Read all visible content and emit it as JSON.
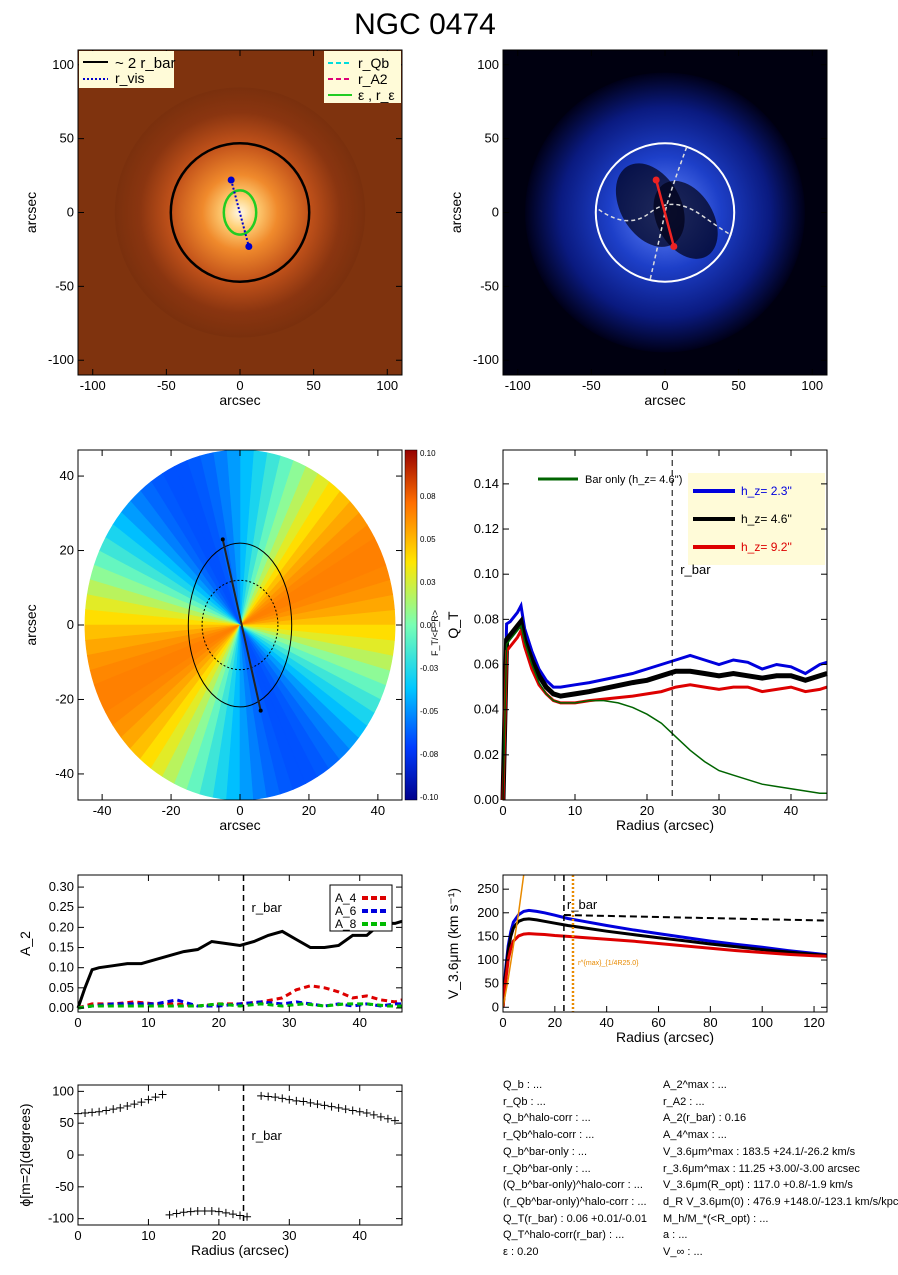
{
  "title": "NGC 0474",
  "chart_data": [
    {
      "type": "image",
      "panel": "top-left",
      "description_shown": "galaxy image with overlays",
      "xlabel": "arcsec",
      "ylabel": "arcsec",
      "xlim": [
        -110,
        110
      ],
      "ylim": [
        -110,
        110
      ],
      "xticks": [
        -100,
        -50,
        0,
        50,
        100
      ],
      "yticks": [
        -100,
        -50,
        0,
        50,
        100
      ],
      "legend_left": [
        "~ 2 r_bar",
        "r_vis"
      ],
      "legend_right": [
        "r_Qb",
        "r_A2",
        "ε , r_ε"
      ],
      "circle_radius": 47,
      "ellipse": {
        "a": 15,
        "b": 11
      },
      "vis_line": [
        [
          -6,
          22
        ],
        [
          6,
          -23
        ]
      ]
    },
    {
      "type": "image",
      "panel": "top-right",
      "xlabel": "arcsec",
      "ylabel": "arcsec",
      "xlim": [
        -110,
        110
      ],
      "ylim": [
        -110,
        110
      ],
      "xticks": [
        -100,
        -50,
        0,
        50,
        100
      ],
      "yticks": [
        -100,
        -50,
        0,
        50,
        100
      ],
      "circle_radius": 47,
      "red_line": [
        [
          -6,
          22
        ],
        [
          6,
          -23
        ]
      ]
    },
    {
      "type": "heatmap",
      "panel": "middle-left",
      "xlabel": "arcsec",
      "ylabel": "arcsec",
      "xlim": [
        -47,
        47
      ],
      "ylim": [
        -47,
        47
      ],
      "xticks": [
        -40,
        -20,
        0,
        20,
        40
      ],
      "yticks": [
        -40,
        -20,
        0,
        20,
        40
      ],
      "colorbar_label": "F_T/<F_R>",
      "colorbar_ticks": [
        "0.10",
        "0.08",
        "0.05",
        "0.03",
        "0.00",
        "-0.03",
        "-0.05",
        "-0.08",
        "-0.10"
      ],
      "bar_line": [
        [
          -5,
          23
        ],
        [
          6,
          -23
        ]
      ],
      "ellipse": {
        "a": 22,
        "b": 15
      },
      "dotted_circle_radius": 8
    },
    {
      "type": "line",
      "panel": "middle-right",
      "xlabel": "Radius (arcsec)",
      "ylabel": "Q_T",
      "xlim": [
        0,
        45
      ],
      "ylim": [
        0,
        0.155
      ],
      "xticks": [
        0,
        10,
        20,
        30,
        40
      ],
      "yticks": [
        "0.00",
        "0.02",
        "0.04",
        "0.06",
        "0.08",
        "0.10",
        "0.12",
        "0.14"
      ],
      "rbar": 23.5,
      "rbar_label": "r_bar",
      "legend_bar": "Bar only (h_z=  4.6'')",
      "legend": [
        {
          "label": "h_z=  2.3''",
          "color": "#0000dd"
        },
        {
          "label": "h_z=  4.6''",
          "color": "#000000"
        },
        {
          "label": "h_z=  9.2''",
          "color": "#dd0000"
        }
      ],
      "series": [
        {
          "name": "h_z=  2.3''",
          "color": "#0000dd",
          "x": [
            0,
            0.5,
            1,
            2,
            2.5,
            3,
            4,
            5,
            6,
            7,
            8,
            10,
            12,
            15,
            18,
            20,
            22,
            24,
            26,
            28,
            30,
            32,
            34,
            36,
            38,
            40,
            42,
            44,
            45
          ],
          "y": [
            0.0,
            0.078,
            0.079,
            0.083,
            0.086,
            0.076,
            0.066,
            0.058,
            0.053,
            0.05,
            0.05,
            0.051,
            0.052,
            0.054,
            0.056,
            0.058,
            0.06,
            0.062,
            0.064,
            0.062,
            0.06,
            0.062,
            0.061,
            0.058,
            0.06,
            0.059,
            0.056,
            0.06,
            0.061
          ]
        },
        {
          "name": "h_z=  4.6''",
          "color": "#000000",
          "x": [
            0,
            0.5,
            1,
            2,
            2.5,
            3,
            4,
            5,
            6,
            7,
            8,
            10,
            12,
            15,
            18,
            20,
            22,
            24,
            26,
            28,
            30,
            32,
            34,
            36,
            38,
            40,
            42,
            44,
            45
          ],
          "y": [
            0.0,
            0.071,
            0.073,
            0.077,
            0.079,
            0.071,
            0.062,
            0.055,
            0.05,
            0.047,
            0.046,
            0.047,
            0.048,
            0.05,
            0.052,
            0.053,
            0.055,
            0.057,
            0.057,
            0.056,
            0.055,
            0.056,
            0.055,
            0.054,
            0.055,
            0.055,
            0.053,
            0.055,
            0.056
          ]
        },
        {
          "name": "h_z=  9.2''",
          "color": "#dd0000",
          "x": [
            0,
            0.5,
            1,
            2,
            2.5,
            3,
            4,
            5,
            6,
            7,
            8,
            10,
            12,
            15,
            18,
            20,
            22,
            24,
            26,
            28,
            30,
            32,
            34,
            36,
            38,
            40,
            42,
            44,
            45
          ],
          "y": [
            0.0,
            0.066,
            0.068,
            0.072,
            0.075,
            0.068,
            0.058,
            0.051,
            0.047,
            0.044,
            0.043,
            0.043,
            0.044,
            0.045,
            0.046,
            0.047,
            0.048,
            0.05,
            0.051,
            0.05,
            0.049,
            0.05,
            0.05,
            0.048,
            0.049,
            0.05,
            0.048,
            0.049,
            0.05
          ]
        },
        {
          "name": "Bar only (h_z=  4.6'')",
          "color": "#006400",
          "x": [
            0,
            0.5,
            1,
            2,
            2.5,
            3,
            4,
            5,
            6,
            7,
            8,
            10,
            12,
            14,
            16,
            18,
            20,
            22,
            24,
            26,
            28,
            30,
            32,
            34,
            36,
            38,
            40,
            42,
            44,
            45
          ],
          "y": [
            0.0,
            0.069,
            0.071,
            0.075,
            0.077,
            0.07,
            0.06,
            0.052,
            0.047,
            0.044,
            0.043,
            0.043,
            0.044,
            0.044,
            0.043,
            0.041,
            0.038,
            0.034,
            0.028,
            0.022,
            0.017,
            0.013,
            0.011,
            0.009,
            0.007,
            0.006,
            0.005,
            0.004,
            0.003,
            0.003
          ]
        }
      ]
    },
    {
      "type": "line",
      "panel": "lower-left",
      "xlabel": "",
      "ylabel": "A_2",
      "xlim": [
        0,
        46
      ],
      "ylim": [
        -0.01,
        0.33
      ],
      "xticks": [
        0,
        10,
        20,
        30,
        40
      ],
      "yticks": [
        "0.00",
        "0.05",
        "0.10",
        "0.15",
        "0.20",
        "0.25",
        "0.30"
      ],
      "rbar": 23.5,
      "rbar_label": "r_bar",
      "legend": [
        "A_4",
        "A_6",
        "A_8"
      ],
      "series": [
        {
          "name": "A_2",
          "color": "#000000",
          "x": [
            0,
            1,
            2,
            3,
            5,
            7,
            9,
            11,
            13,
            15,
            17,
            19,
            21,
            23,
            25,
            27,
            29,
            31,
            33,
            35,
            37,
            39,
            41,
            43,
            45,
            46
          ],
          "y": [
            0.0,
            0.05,
            0.095,
            0.1,
            0.105,
            0.11,
            0.11,
            0.12,
            0.13,
            0.14,
            0.145,
            0.165,
            0.16,
            0.155,
            0.165,
            0.18,
            0.19,
            0.17,
            0.15,
            0.15,
            0.155,
            0.18,
            0.18,
            0.21,
            0.21,
            0.215
          ]
        },
        {
          "name": "A_4",
          "color": "#dd0000",
          "x": [
            0,
            2,
            5,
            8,
            11,
            14,
            17,
            20,
            23,
            26,
            29,
            31,
            33,
            35,
            37,
            39,
            41,
            43,
            45,
            46
          ],
          "y": [
            0.0,
            0.01,
            0.01,
            0.015,
            0.01,
            0.01,
            0.005,
            0.01,
            0.01,
            0.015,
            0.025,
            0.045,
            0.055,
            0.05,
            0.04,
            0.025,
            0.03,
            0.02,
            0.015,
            0.02
          ]
        },
        {
          "name": "A_6",
          "color": "#0000dd",
          "x": [
            0,
            2,
            5,
            8,
            11,
            14,
            17,
            20,
            23,
            26,
            29,
            31,
            33,
            35,
            37,
            39,
            41,
            43,
            45,
            46
          ],
          "y": [
            0.0,
            0.005,
            0.01,
            0.01,
            0.01,
            0.02,
            0.005,
            0.005,
            0.01,
            0.015,
            0.01,
            0.015,
            0.01,
            0.005,
            0.01,
            0.005,
            0.01,
            0.005,
            0.01,
            0.01
          ]
        },
        {
          "name": "A_8",
          "color": "#00bb00",
          "x": [
            0,
            2,
            5,
            8,
            11,
            14,
            17,
            20,
            23,
            26,
            29,
            32,
            35,
            38,
            41,
            44,
            46
          ],
          "y": [
            0.0,
            0.005,
            0.005,
            0.005,
            0.005,
            0.005,
            0.005,
            0.01,
            0.005,
            0.01,
            0.005,
            0.01,
            0.005,
            0.01,
            0.01,
            0.005,
            0.005
          ]
        }
      ]
    },
    {
      "type": "line",
      "panel": "lower-right",
      "xlabel": "Radius (arcsec)",
      "ylabel": "V_3.6μm (km s⁻¹)",
      "xlim": [
        0,
        125
      ],
      "ylim": [
        -10,
        280
      ],
      "xticks": [
        0,
        20,
        40,
        60,
        80,
        100,
        120
      ],
      "yticks": [
        0,
        50,
        100,
        150,
        200,
        250
      ],
      "rbar": 23.5,
      "rbar_label": "r_bar",
      "vline_orange": 27,
      "vline_label": "r^{max}_{1/4R25.0}",
      "hline": 183.5,
      "series": [
        {
          "name": "blue",
          "color": "#0000dd",
          "x": [
            0,
            1,
            2,
            3,
            4,
            6,
            8,
            10,
            13,
            16,
            20,
            25,
            30,
            40,
            50,
            60,
            70,
            80,
            90,
            100,
            110,
            120,
            125
          ],
          "y": [
            0,
            80,
            130,
            160,
            180,
            196,
            203,
            205,
            203,
            200,
            195,
            188,
            183,
            173,
            164,
            156,
            148,
            140,
            133,
            127,
            120,
            114,
            111
          ]
        },
        {
          "name": "black",
          "color": "#000000",
          "x": [
            0,
            1,
            2,
            3,
            4,
            6,
            8,
            10,
            13,
            16,
            20,
            25,
            30,
            40,
            50,
            60,
            70,
            80,
            90,
            100,
            110,
            120,
            125
          ],
          "y": [
            0,
            70,
            120,
            150,
            168,
            182,
            186,
            187,
            185,
            182,
            178,
            173,
            169,
            161,
            154,
            147,
            141,
            134,
            128,
            122,
            117,
            112,
            110
          ]
        },
        {
          "name": "red",
          "color": "#dd0000",
          "x": [
            0,
            1,
            2,
            3,
            4,
            6,
            8,
            10,
            13,
            16,
            20,
            25,
            30,
            40,
            50,
            60,
            70,
            80,
            90,
            100,
            110,
            120,
            125
          ],
          "y": [
            0,
            55,
            100,
            125,
            140,
            151,
            155,
            156,
            155,
            154,
            152,
            150,
            148,
            144,
            140,
            135,
            130,
            125,
            120,
            116,
            112,
            109,
            108
          ]
        },
        {
          "name": "orange",
          "color": "#e88a00",
          "x": [
            0,
            2,
            4,
            6,
            8
          ],
          "y": [
            0,
            60,
            130,
            200,
            280
          ]
        }
      ]
    },
    {
      "type": "scatter",
      "panel": "bottom-left",
      "xlabel": "Radius (arcsec)",
      "ylabel": "ϕ[m=2](degrees)",
      "xlim": [
        0,
        46
      ],
      "ylim": [
        -110,
        110
      ],
      "xticks": [
        0,
        10,
        20,
        30,
        40
      ],
      "yticks": [
        -100,
        -50,
        0,
        50,
        100
      ],
      "rbar": 23.5,
      "rbar_label": "r_bar",
      "x": [
        0,
        1,
        2,
        3,
        4,
        5,
        6,
        7,
        8,
        9,
        10,
        11,
        12,
        13,
        14,
        15,
        16,
        17,
        18,
        19,
        20,
        21,
        22,
        23,
        24,
        26,
        27,
        28,
        29,
        30,
        31,
        32,
        33,
        34,
        35,
        36,
        37,
        38,
        39,
        40,
        41,
        42,
        43,
        44,
        45
      ],
      "y": [
        65,
        66,
        67,
        68,
        70,
        72,
        74,
        77,
        80,
        83,
        87,
        91,
        95,
        -94,
        -92,
        -90,
        -89,
        -88,
        -88,
        -88,
        -89,
        -91,
        -93,
        -95,
        -97,
        93,
        92,
        91,
        89,
        87,
        85,
        84,
        82,
        80,
        78,
        76,
        74,
        72,
        70,
        68,
        66,
        63,
        60,
        57,
        54
      ]
    }
  ],
  "params_left": [
    "Q_b : ...",
    "r_Qb : ...",
    "Q_b^halo-corr : ...",
    "r_Qb^halo-corr : ...",
    "Q_b^bar-only : ...",
    "r_Qb^bar-only : ...",
    "(Q_b^bar-only)^halo-corr : ...",
    "(r_Qb^bar-only)^halo-corr : ...",
    "Q_T(r_bar) :  0.06 +0.01/-0.01",
    "Q_T^halo-corr(r_bar) : ...",
    "ε :  0.20"
  ],
  "params_right": [
    "A_2^max : ...",
    "r_A2 : ...",
    "A_2(r_bar) :  0.16",
    "A_4^max : ...",
    "V_3.6μm^max : 183.5 +24.1/-26.2 km/s",
    "r_3.6μm^max :  11.25 +3.00/-3.00 arcsec",
    "V_3.6μm(R_opt) :  117.0 +0.8/-1.9 km/s",
    "d_R V_3.6μm(0) :  476.9 +148.0/-123.1 km/s/kpc",
    "M_h/M_*(<R_opt) : ...",
    "a : ...",
    "V_∞ : ..."
  ]
}
